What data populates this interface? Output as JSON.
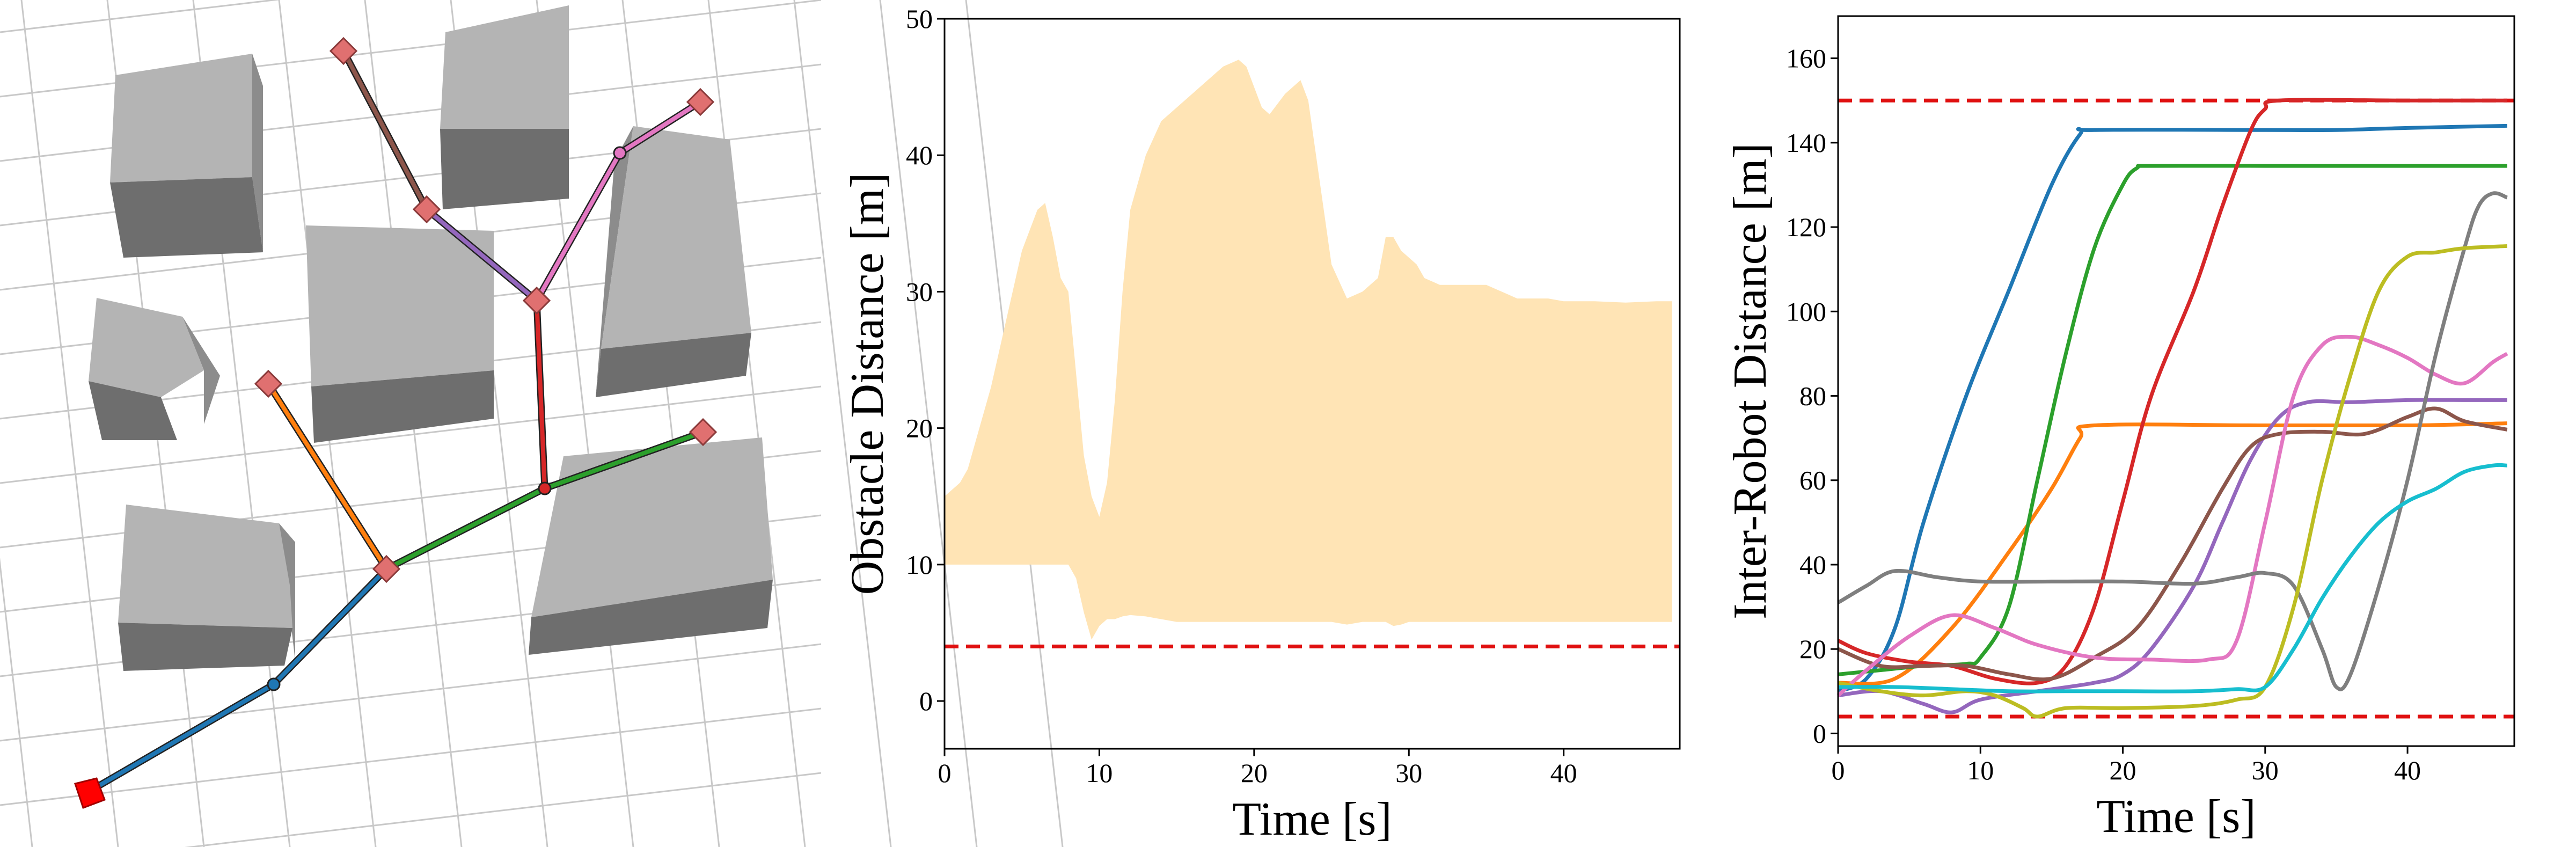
{
  "scene": {
    "obstacle_color_top": "#b4b4b4",
    "obstacle_color_side": "#8c8c8c",
    "obstacle_color_front": "#6e6e6e",
    "grid_color": "#c8c8c8",
    "start_color": "#ff0000",
    "waypoint_color": "#e07070",
    "edge_colors": [
      "#1f77b4",
      "#ff7f0e",
      "#2ca02c",
      "#d62728",
      "#9467bd",
      "#8c564b",
      "#e377c2"
    ]
  },
  "chart_data": [
    {
      "type": "area",
      "xlabel": "Time [s]",
      "ylabel": "Obstacle Distance [m]",
      "xlim": [
        0,
        47.5
      ],
      "ylim": [
        -3.5,
        50
      ],
      "xticks": [
        0,
        10,
        20,
        30,
        40
      ],
      "yticks": [
        0,
        10,
        20,
        30,
        40,
        50
      ],
      "fill_color": "#ffe4b5",
      "threshold": {
        "value": 4,
        "color": "#e01010",
        "style": "dashed"
      },
      "x": [
        0,
        0.5,
        1,
        1.5,
        2,
        3,
        4,
        5,
        6,
        6.5,
        7,
        7.5,
        8,
        8.5,
        9,
        9.5,
        10,
        10.5,
        11,
        11.5,
        12,
        13,
        14,
        15,
        16,
        17,
        18,
        19,
        19.5,
        20,
        20.5,
        21,
        22,
        23,
        23.5,
        24,
        25,
        26,
        27,
        28,
        28.5,
        29,
        29.5,
        30,
        30.5,
        31,
        32,
        33,
        34,
        35,
        36,
        37,
        38,
        39,
        40,
        42,
        44,
        46,
        47
      ],
      "upper": [
        15,
        15.5,
        16,
        17,
        19,
        23,
        28,
        33,
        36,
        36.5,
        34,
        31,
        30,
        24,
        18,
        15,
        13.5,
        16,
        22,
        30,
        36,
        40,
        42.5,
        43.5,
        44.5,
        45.5,
        46.5,
        47,
        46.5,
        45,
        43.5,
        43,
        44.5,
        45.5,
        44,
        40,
        32,
        29.5,
        30,
        31,
        34,
        34,
        33,
        32.5,
        32,
        31,
        30.5,
        30.5,
        30.5,
        30.5,
        30,
        29.5,
        29.5,
        29.5,
        29.3,
        29.3,
        29.2,
        29.3,
        29.3
      ],
      "lower": [
        10,
        10,
        10,
        10,
        10,
        10,
        10,
        10,
        10,
        10,
        10,
        10,
        10,
        9,
        6.5,
        4.5,
        5.5,
        6,
        6,
        6.2,
        6.3,
        6.2,
        6,
        5.8,
        5.8,
        5.8,
        5.8,
        5.8,
        5.8,
        5.8,
        5.8,
        5.8,
        5.8,
        5.8,
        5.8,
        5.8,
        5.8,
        5.6,
        5.8,
        5.8,
        5.8,
        5.5,
        5.6,
        5.8,
        5.8,
        5.8,
        5.8,
        5.8,
        5.8,
        5.8,
        5.8,
        5.8,
        5.8,
        5.8,
        5.8,
        5.8,
        5.8,
        5.8,
        5.8
      ]
    },
    {
      "type": "line",
      "xlabel": "Time [s]",
      "ylabel": "Inter-Robot Distance [m]",
      "xlim": [
        0,
        47.5
      ],
      "ylim": [
        -3,
        170
      ],
      "xticks": [
        0,
        10,
        20,
        30,
        40
      ],
      "yticks": [
        0,
        20,
        40,
        60,
        80,
        100,
        120,
        140,
        160
      ],
      "thresholds": [
        {
          "value": 150,
          "color": "#e01010",
          "style": "dashed"
        },
        {
          "value": 4,
          "color": "#e01010",
          "style": "dashed"
        }
      ],
      "series": [
        {
          "color": "#1f77b4",
          "points": [
            [
              0,
              10
            ],
            [
              2,
              13
            ],
            [
              4,
              25
            ],
            [
              6,
              50
            ],
            [
              9,
              80
            ],
            [
              12,
              105
            ],
            [
              15,
              130
            ],
            [
              17,
              142
            ],
            [
              18,
              143
            ],
            [
              30,
              143
            ],
            [
              35,
              143
            ],
            [
              40,
              143.5
            ],
            [
              47,
              144
            ]
          ]
        },
        {
          "color": "#ff7f0e",
          "points": [
            [
              0,
              12
            ],
            [
              4,
              13
            ],
            [
              8,
              25
            ],
            [
              12,
              43
            ],
            [
              15,
              58
            ],
            [
              17,
              70
            ],
            [
              18,
              73
            ],
            [
              30,
              73
            ],
            [
              40,
              73
            ],
            [
              47,
              73.5
            ]
          ]
        },
        {
          "color": "#2ca02c",
          "points": [
            [
              0,
              14
            ],
            [
              3,
              15
            ],
            [
              6,
              16
            ],
            [
              9,
              16.5
            ],
            [
              10,
              18
            ],
            [
              12,
              30
            ],
            [
              14,
              60
            ],
            [
              16,
              90
            ],
            [
              18,
              115
            ],
            [
              20,
              130
            ],
            [
              21,
              134
            ],
            [
              22,
              134.5
            ],
            [
              30,
              134.5
            ],
            [
              40,
              134.5
            ],
            [
              47,
              134.5
            ]
          ]
        },
        {
          "color": "#d62728",
          "points": [
            [
              0,
              22
            ],
            [
              2,
              19
            ],
            [
              5,
              17
            ],
            [
              8,
              16
            ],
            [
              11,
              13
            ],
            [
              14,
              12
            ],
            [
              16,
              16
            ],
            [
              18,
              30
            ],
            [
              20,
              55
            ],
            [
              22,
              80
            ],
            [
              25,
              105
            ],
            [
              27,
              125
            ],
            [
              29,
              143
            ],
            [
              30,
              148
            ],
            [
              31,
              150
            ],
            [
              40,
              150
            ],
            [
              47,
              150
            ]
          ]
        },
        {
          "color": "#9467bd",
          "points": [
            [
              0,
              9
            ],
            [
              3,
              10
            ],
            [
              6,
              7
            ],
            [
              8,
              5
            ],
            [
              10,
              8
            ],
            [
              14,
              10
            ],
            [
              18,
              12
            ],
            [
              20,
              14
            ],
            [
              22,
              20
            ],
            [
              25,
              35
            ],
            [
              27,
              50
            ],
            [
              29,
              65
            ],
            [
              31,
              75
            ],
            [
              33,
              78.5
            ],
            [
              36,
              78.5
            ],
            [
              40,
              79
            ],
            [
              44,
              79
            ],
            [
              47,
              79
            ]
          ]
        },
        {
          "color": "#8c564b",
          "points": [
            [
              0,
              20
            ],
            [
              3,
              16
            ],
            [
              6,
              16
            ],
            [
              9,
              16
            ],
            [
              12,
              14
            ],
            [
              15,
              13
            ],
            [
              18,
              18
            ],
            [
              21,
              25
            ],
            [
              24,
              40
            ],
            [
              27,
              58
            ],
            [
              29,
              68
            ],
            [
              31,
              71
            ],
            [
              34,
              71.5
            ],
            [
              37,
              71
            ],
            [
              40,
              75
            ],
            [
              42,
              77
            ],
            [
              44,
              74
            ],
            [
              47,
              72
            ]
          ]
        },
        {
          "color": "#e377c2",
          "points": [
            [
              0,
              9
            ],
            [
              2,
              15
            ],
            [
              5,
              23
            ],
            [
              8,
              28
            ],
            [
              11,
              25
            ],
            [
              14,
              21
            ],
            [
              18,
              18
            ],
            [
              22,
              17.5
            ],
            [
              26,
              17.5
            ],
            [
              28,
              22
            ],
            [
              30,
              50
            ],
            [
              32,
              80
            ],
            [
              34,
              92
            ],
            [
              36,
              94
            ],
            [
              38,
              92
            ],
            [
              40,
              89
            ],
            [
              42,
              85
            ],
            [
              44,
              83
            ],
            [
              46,
              88
            ],
            [
              47,
              90
            ]
          ]
        },
        {
          "color": "#7f7f7f",
          "points": [
            [
              0,
              31
            ],
            [
              2,
              35
            ],
            [
              4,
              38.5
            ],
            [
              7,
              37
            ],
            [
              10,
              36
            ],
            [
              15,
              36
            ],
            [
              20,
              36
            ],
            [
              25,
              35.5
            ],
            [
              28,
              37
            ],
            [
              30,
              38
            ],
            [
              32,
              35
            ],
            [
              34,
              20
            ],
            [
              35,
              11
            ],
            [
              36,
              14
            ],
            [
              38,
              35
            ],
            [
              40,
              60
            ],
            [
              42,
              90
            ],
            [
              44,
              115
            ],
            [
              45,
              125
            ],
            [
              46,
              128
            ],
            [
              47,
              127
            ]
          ]
        },
        {
          "color": "#bcbd22",
          "points": [
            [
              0,
              12
            ],
            [
              3,
              10
            ],
            [
              6,
              9
            ],
            [
              9,
              10
            ],
            [
              11,
              9
            ],
            [
              13,
              6
            ],
            [
              14,
              4
            ],
            [
              16,
              6
            ],
            [
              20,
              6
            ],
            [
              25,
              6.5
            ],
            [
              28,
              8
            ],
            [
              30,
              11
            ],
            [
              32,
              30
            ],
            [
              34,
              60
            ],
            [
              36,
              85
            ],
            [
              38,
              105
            ],
            [
              40,
              113
            ],
            [
              42,
              114
            ],
            [
              44,
              115
            ],
            [
              47,
              115.5
            ]
          ]
        },
        {
          "color": "#17becf",
          "points": [
            [
              0,
              11
            ],
            [
              4,
              11
            ],
            [
              8,
              10.5
            ],
            [
              12,
              10
            ],
            [
              16,
              10
            ],
            [
              20,
              10
            ],
            [
              25,
              10
            ],
            [
              28,
              10.5
            ],
            [
              30,
              11
            ],
            [
              32,
              20
            ],
            [
              34,
              32
            ],
            [
              36,
              42
            ],
            [
              38,
              50
            ],
            [
              40,
              55
            ],
            [
              42,
              58
            ],
            [
              44,
              62
            ],
            [
              46,
              63.5
            ],
            [
              47,
              63.5
            ]
          ]
        }
      ]
    }
  ]
}
